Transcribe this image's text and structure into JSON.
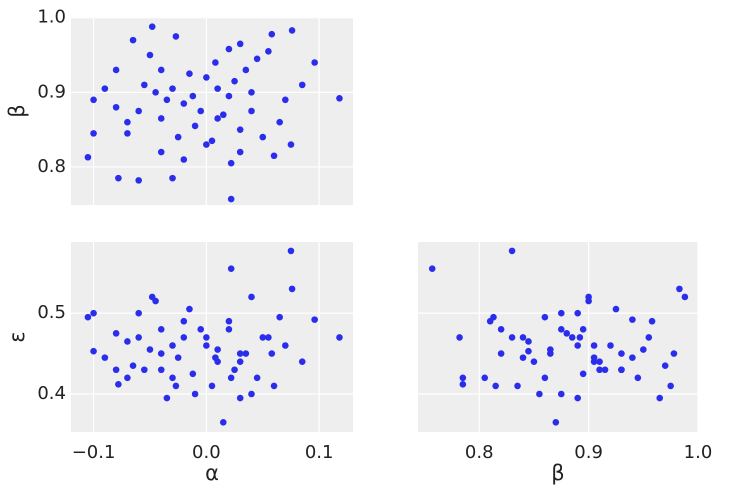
{
  "chart_data": [
    {
      "type": "scatter",
      "ylabel": "β",
      "color": "#2a2eec",
      "grid": true,
      "background": "#eeeeee",
      "x": [
        -0.105,
        -0.1,
        -0.1,
        0.118,
        0.022,
        0.075,
        0.096,
        0.076,
        -0.078,
        -0.06,
        -0.03,
        -0.048,
        -0.027,
        0.03,
        0.058,
        0.02,
        -0.05,
        -0.04,
        0.0,
        0.01,
        0.02,
        -0.02,
        -0.06,
        -0.07,
        -0.04,
        -0.01,
        0.03,
        0.05,
        0.06,
        0.022,
        -0.02,
        0.04,
        0.07,
        -0.08,
        -0.08,
        0.008,
        -0.015,
        0.035,
        0.045,
        -0.055,
        -0.035,
        0.015,
        0.005,
        -0.025,
        0.065,
        0.055,
        -0.065,
        -0.045,
        0.025,
        -0.005,
        0.01,
        -0.03,
        0.04,
        -0.012,
        0.0,
        -0.09,
        0.085,
        -0.04,
        0.03,
        -0.07
      ],
      "values": [
        0.813,
        0.89,
        0.845,
        0.892,
        0.757,
        0.83,
        0.94,
        0.983,
        0.785,
        0.782,
        0.785,
        0.988,
        0.975,
        0.965,
        0.978,
        0.958,
        0.95,
        0.93,
        0.92,
        0.905,
        0.895,
        0.885,
        0.875,
        0.86,
        0.865,
        0.855,
        0.85,
        0.84,
        0.815,
        0.805,
        0.81,
        0.9,
        0.89,
        0.93,
        0.88,
        0.94,
        0.925,
        0.93,
        0.945,
        0.91,
        0.89,
        0.87,
        0.835,
        0.84,
        0.86,
        0.955,
        0.97,
        0.9,
        0.915,
        0.875,
        0.865,
        0.905,
        0.875,
        0.895,
        0.83,
        0.905,
        0.91,
        0.82,
        0.82,
        0.845
      ],
      "xlim": [
        -0.12,
        0.13
      ],
      "ylim": [
        0.749,
        1.001
      ],
      "xticks": [
        -0.1,
        0,
        0.1
      ],
      "show_xtick_labels": false,
      "yticks": [
        0.8,
        0.9,
        {
          "value": 1.0,
          "label": "1.0"
        }
      ]
    },
    {
      "type": "scatter",
      "xlabel": "α",
      "ylabel": "ε",
      "color": "#2a2eec",
      "grid": true,
      "background": "#eeeeee",
      "x": [
        -0.105,
        -0.1,
        -0.1,
        0.118,
        0.022,
        0.075,
        0.096,
        0.076,
        -0.078,
        -0.06,
        -0.03,
        -0.048,
        -0.027,
        0.03,
        0.058,
        0.02,
        -0.05,
        -0.04,
        0.0,
        0.01,
        0.02,
        -0.02,
        -0.06,
        -0.07,
        -0.04,
        -0.01,
        0.03,
        0.05,
        0.06,
        0.022,
        -0.02,
        0.04,
        0.07,
        -0.08,
        -0.08,
        0.008,
        -0.015,
        0.035,
        0.045,
        -0.055,
        -0.035,
        0.015,
        0.005,
        -0.025,
        0.065,
        0.055,
        -0.065,
        -0.045,
        0.025,
        -0.005,
        0.01,
        -0.03,
        0.04,
        -0.012,
        0.0,
        -0.09,
        0.085,
        -0.04,
        0.03,
        -0.07
      ],
      "values": [
        0.495,
        0.5,
        0.453,
        0.47,
        0.555,
        0.577,
        0.492,
        0.53,
        0.412,
        0.47,
        0.42,
        0.52,
        0.41,
        0.395,
        0.45,
        0.49,
        0.455,
        0.43,
        0.46,
        0.44,
        0.48,
        0.47,
        0.5,
        0.42,
        0.45,
        0.4,
        0.44,
        0.47,
        0.41,
        0.42,
        0.49,
        0.52,
        0.46,
        0.43,
        0.475,
        0.445,
        0.505,
        0.45,
        0.42,
        0.43,
        0.395,
        0.365,
        0.41,
        0.445,
        0.495,
        0.47,
        0.435,
        0.515,
        0.43,
        0.48,
        0.455,
        0.46,
        0.4,
        0.425,
        0.47,
        0.445,
        0.44,
        0.48,
        0.45,
        0.465
      ],
      "xlim": [
        -0.12,
        0.13
      ],
      "ylim": [
        0.353,
        0.588
      ],
      "xticks": [
        {
          "value": -0.1,
          "label": "−0.1"
        },
        {
          "value": 0,
          "label": "0.0"
        },
        0.1
      ],
      "yticks": [
        0.4,
        0.5
      ]
    },
    {
      "type": "scatter",
      "xlabel": "β",
      "color": "#2a2eec",
      "grid": true,
      "background": "#eeeeee",
      "x": [
        0.813,
        0.89,
        0.845,
        0.892,
        0.757,
        0.83,
        0.94,
        0.983,
        0.785,
        0.782,
        0.785,
        0.988,
        0.975,
        0.965,
        0.978,
        0.958,
        0.95,
        0.93,
        0.92,
        0.905,
        0.895,
        0.885,
        0.875,
        0.86,
        0.865,
        0.855,
        0.85,
        0.84,
        0.815,
        0.805,
        0.81,
        0.9,
        0.89,
        0.93,
        0.88,
        0.94,
        0.925,
        0.93,
        0.945,
        0.91,
        0.89,
        0.87,
        0.835,
        0.84,
        0.86,
        0.955,
        0.97,
        0.9,
        0.915,
        0.875,
        0.865,
        0.905,
        0.875,
        0.895,
        0.83,
        0.905,
        0.91,
        0.82,
        0.82,
        0.845
      ],
      "values": [
        0.495,
        0.5,
        0.453,
        0.47,
        0.555,
        0.577,
        0.492,
        0.53,
        0.412,
        0.47,
        0.42,
        0.52,
        0.41,
        0.395,
        0.45,
        0.49,
        0.455,
        0.43,
        0.46,
        0.44,
        0.48,
        0.47,
        0.5,
        0.42,
        0.45,
        0.4,
        0.44,
        0.47,
        0.41,
        0.42,
        0.49,
        0.52,
        0.46,
        0.43,
        0.475,
        0.445,
        0.505,
        0.45,
        0.42,
        0.43,
        0.395,
        0.365,
        0.41,
        0.445,
        0.495,
        0.47,
        0.435,
        0.515,
        0.43,
        0.48,
        0.455,
        0.46,
        0.4,
        0.425,
        0.47,
        0.445,
        0.44,
        0.48,
        0.45,
        0.465
      ],
      "xlim": [
        0.744,
        1.0
      ],
      "ylim": [
        0.353,
        0.588
      ],
      "xticks": [
        0.8,
        0.9,
        {
          "value": 1.0,
          "label": "1.0"
        }
      ],
      "yticks": [
        0.4,
        0.5
      ],
      "show_ytick_labels": false
    }
  ]
}
